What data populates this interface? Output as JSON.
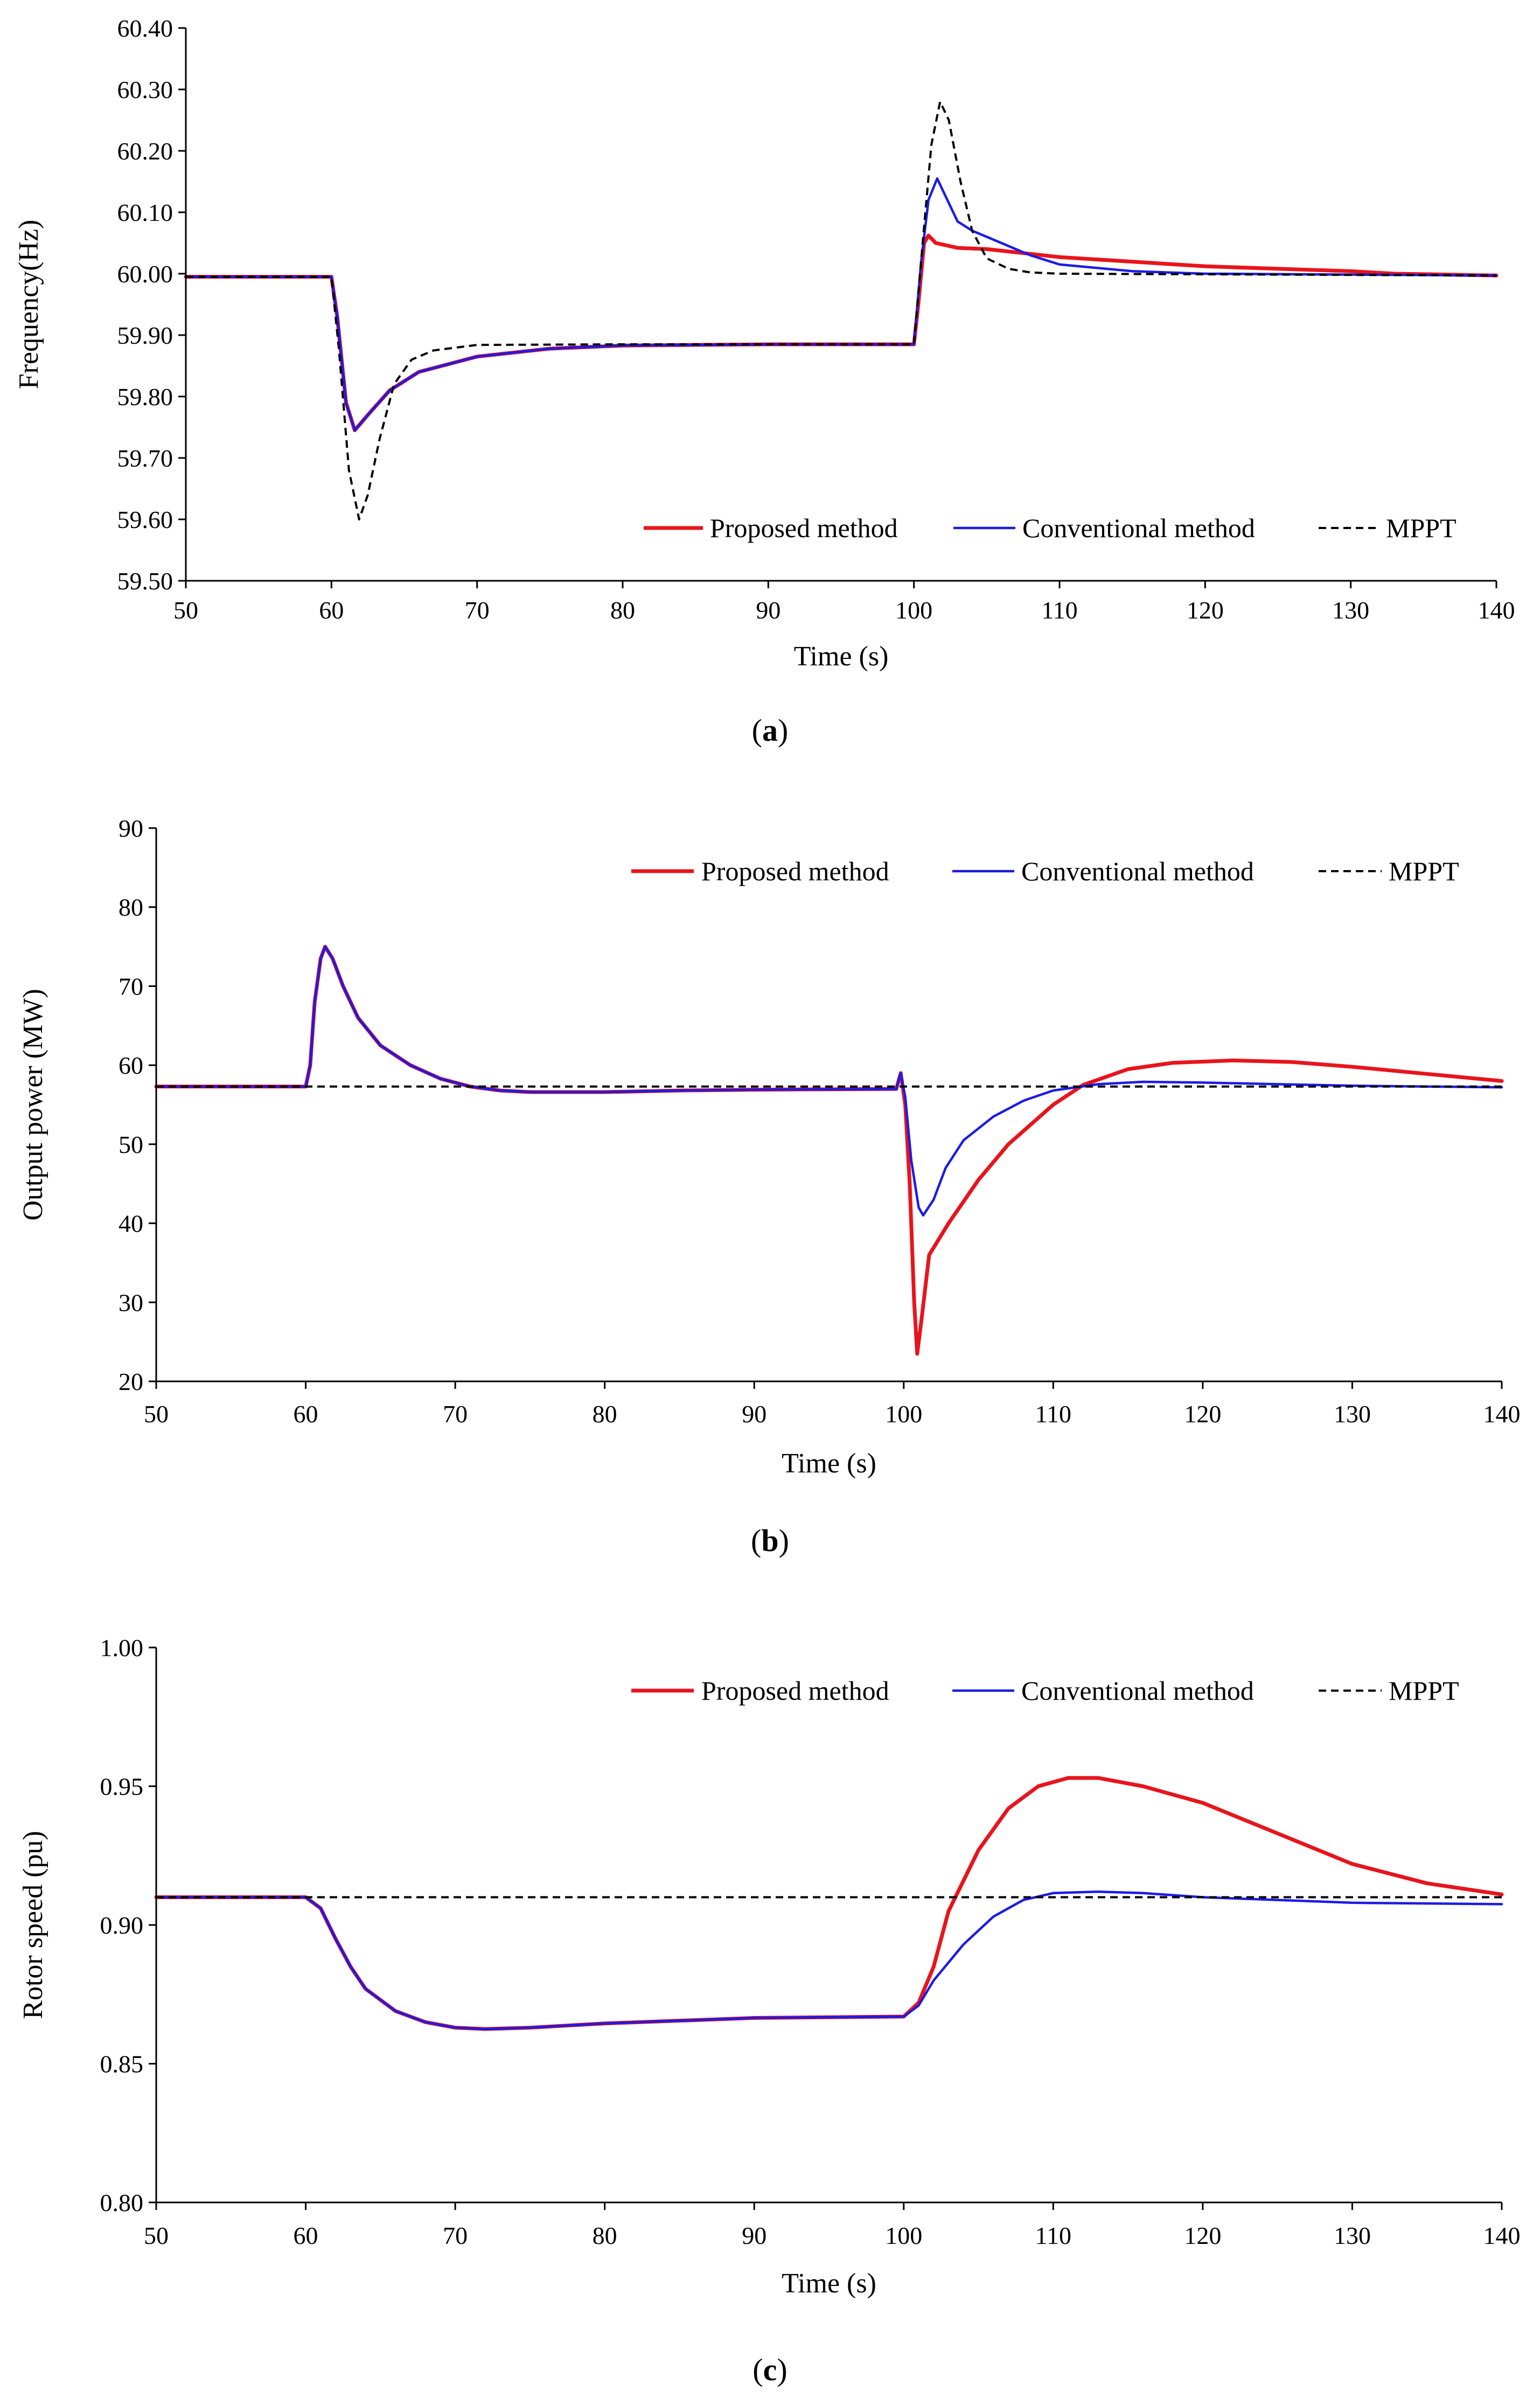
{
  "chart_data": [
    {
      "type": "line",
      "caption_letter": "a",
      "xlabel": "Time (s)",
      "ylabel": "Frequency(Hz)",
      "xlim": [
        50,
        140
      ],
      "ylim": [
        59.5,
        60.4
      ],
      "x_ticks": [
        "50",
        "60",
        "70",
        "80",
        "90",
        "100",
        "110",
        "120",
        "130",
        "140"
      ],
      "y_ticks": [
        "59.50",
        "59.60",
        "59.70",
        "59.80",
        "59.90",
        "60.00",
        "60.10",
        "60.20",
        "60.30",
        "60.40"
      ],
      "legend_position": "bottom-right",
      "grid": false,
      "series": [
        {
          "name": "Proposed method",
          "color": "#e8141c",
          "style": "solid",
          "points": [
            [
              50,
              59.995
            ],
            [
              60,
              59.995
            ],
            [
              60.4,
              59.93
            ],
            [
              61,
              59.79
            ],
            [
              61.6,
              59.745
            ],
            [
              62.5,
              59.77
            ],
            [
              64,
              59.81
            ],
            [
              66,
              59.84
            ],
            [
              70,
              59.865
            ],
            [
              75,
              59.878
            ],
            [
              80,
              59.883
            ],
            [
              90,
              59.885
            ],
            [
              100,
              59.885
            ],
            [
              100.3,
              59.95
            ],
            [
              100.7,
              60.05
            ],
            [
              101,
              60.062
            ],
            [
              101.5,
              60.05
            ],
            [
              103,
              60.042
            ],
            [
              105,
              60.04
            ],
            [
              110,
              60.027
            ],
            [
              120,
              60.012
            ],
            [
              130,
              60.004
            ],
            [
              133,
              60.0
            ],
            [
              140,
              59.997
            ]
          ]
        },
        {
          "name": "Conventional method",
          "color": "#1b1be6",
          "style": "solid",
          "points": [
            [
              50,
              59.995
            ],
            [
              60,
              59.995
            ],
            [
              60.4,
              59.93
            ],
            [
              61,
              59.79
            ],
            [
              61.6,
              59.745
            ],
            [
              62.5,
              59.77
            ],
            [
              64,
              59.81
            ],
            [
              66,
              59.84
            ],
            [
              70,
              59.865
            ],
            [
              75,
              59.878
            ],
            [
              80,
              59.883
            ],
            [
              90,
              59.885
            ],
            [
              100,
              59.885
            ],
            [
              100.5,
              60.02
            ],
            [
              101,
              60.12
            ],
            [
              101.6,
              60.155
            ],
            [
              102.3,
              60.12
            ],
            [
              103,
              60.085
            ],
            [
              104,
              60.07
            ],
            [
              106,
              60.05
            ],
            [
              108,
              60.03
            ],
            [
              110,
              60.015
            ],
            [
              115,
              60.004
            ],
            [
              120,
              60.0
            ],
            [
              140,
              59.997
            ]
          ]
        },
        {
          "name": "MPPT",
          "color": "#000000",
          "style": "dashed",
          "points": [
            [
              50,
              59.995
            ],
            [
              60,
              59.995
            ],
            [
              60.5,
              59.88
            ],
            [
              61.2,
              59.68
            ],
            [
              61.9,
              59.6
            ],
            [
              62.5,
              59.64
            ],
            [
              63.3,
              59.73
            ],
            [
              64.3,
              59.82
            ],
            [
              65.5,
              59.86
            ],
            [
              67,
              59.875
            ],
            [
              70,
              59.884
            ],
            [
              80,
              59.885
            ],
            [
              100,
              59.885
            ],
            [
              100.6,
              60.05
            ],
            [
              101.2,
              60.21
            ],
            [
              101.8,
              60.28
            ],
            [
              102.4,
              60.25
            ],
            [
              103.2,
              60.15
            ],
            [
              104,
              60.07
            ],
            [
              105,
              60.025
            ],
            [
              106.5,
              60.008
            ],
            [
              108,
              60.002
            ],
            [
              110,
              60.0
            ],
            [
              140,
              59.997
            ]
          ]
        }
      ]
    },
    {
      "type": "line",
      "caption_letter": "b",
      "xlabel": "Time (s)",
      "ylabel": "Output power (MW)",
      "xlim": [
        50,
        140
      ],
      "ylim": [
        20,
        90
      ],
      "x_ticks": [
        "50",
        "60",
        "70",
        "80",
        "90",
        "100",
        "110",
        "120",
        "130",
        "140"
      ],
      "y_ticks": [
        "20",
        "30",
        "40",
        "50",
        "60",
        "70",
        "80",
        "90"
      ],
      "legend_position": "top-right",
      "grid": false,
      "series": [
        {
          "name": "Proposed method",
          "color": "#e8141c",
          "style": "solid",
          "points": [
            [
              50,
              57.3
            ],
            [
              60,
              57.3
            ],
            [
              60.3,
              60
            ],
            [
              60.6,
              68
            ],
            [
              61,
              73.5
            ],
            [
              61.3,
              75
            ],
            [
              61.8,
              73.5
            ],
            [
              62.5,
              70
            ],
            [
              63.5,
              66
            ],
            [
              65,
              62.5
            ],
            [
              67,
              60
            ],
            [
              69,
              58.3
            ],
            [
              71,
              57.3
            ],
            [
              73,
              56.8
            ],
            [
              75,
              56.6
            ],
            [
              80,
              56.6
            ],
            [
              85,
              56.8
            ],
            [
              90,
              56.9
            ],
            [
              99.5,
              57.0
            ],
            [
              99.8,
              59
            ],
            [
              100.1,
              55
            ],
            [
              100.4,
              45
            ],
            [
              100.7,
              30
            ],
            [
              100.9,
              23.5
            ],
            [
              101.2,
              28
            ],
            [
              101.7,
              36
            ],
            [
              103,
              40
            ],
            [
              105,
              45.5
            ],
            [
              107,
              50
            ],
            [
              110,
              55
            ],
            [
              112,
              57.5
            ],
            [
              115,
              59.5
            ],
            [
              118,
              60.3
            ],
            [
              122,
              60.6
            ],
            [
              126,
              60.4
            ],
            [
              130,
              59.8
            ],
            [
              135,
              58.9
            ],
            [
              140,
              58
            ]
          ]
        },
        {
          "name": "Conventional method",
          "color": "#1b1be6",
          "style": "solid",
          "points": [
            [
              50,
              57.3
            ],
            [
              60,
              57.3
            ],
            [
              60.3,
              60
            ],
            [
              60.6,
              68
            ],
            [
              61,
              73.5
            ],
            [
              61.3,
              75
            ],
            [
              61.8,
              73.5
            ],
            [
              62.5,
              70
            ],
            [
              63.5,
              66
            ],
            [
              65,
              62.5
            ],
            [
              67,
              60
            ],
            [
              69,
              58.3
            ],
            [
              71,
              57.3
            ],
            [
              73,
              56.8
            ],
            [
              75,
              56.6
            ],
            [
              80,
              56.6
            ],
            [
              85,
              56.8
            ],
            [
              90,
              56.9
            ],
            [
              99.5,
              57.0
            ],
            [
              99.8,
              59
            ],
            [
              100.1,
              56
            ],
            [
              100.5,
              48
            ],
            [
              101,
              42
            ],
            [
              101.3,
              41
            ],
            [
              102,
              43
            ],
            [
              102.8,
              47
            ],
            [
              104,
              50.5
            ],
            [
              106,
              53.5
            ],
            [
              108,
              55.5
            ],
            [
              110,
              56.8
            ],
            [
              113,
              57.6
            ],
            [
              116,
              57.9
            ],
            [
              120,
              57.8
            ],
            [
              125,
              57.6
            ],
            [
              130,
              57.4
            ],
            [
              140,
              57.2
            ]
          ]
        },
        {
          "name": "MPPT",
          "color": "#000000",
          "style": "dashed",
          "points": [
            [
              50,
              57.3
            ],
            [
              140,
              57.3
            ]
          ]
        }
      ]
    },
    {
      "type": "line",
      "caption_letter": "c",
      "xlabel": "Time (s)",
      "ylabel": "Rotor speed (pu)",
      "xlim": [
        50,
        140
      ],
      "ylim": [
        0.8,
        1.0
      ],
      "x_ticks": [
        "50",
        "60",
        "70",
        "80",
        "90",
        "100",
        "110",
        "120",
        "130",
        "140"
      ],
      "y_ticks": [
        "0.80",
        "0.85",
        "0.90",
        "0.95",
        "1.00"
      ],
      "legend_position": "top-right",
      "grid": false,
      "series": [
        {
          "name": "Proposed method",
          "color": "#e8141c",
          "style": "solid",
          "points": [
            [
              50,
              0.91
            ],
            [
              60,
              0.91
            ],
            [
              61,
              0.906
            ],
            [
              62,
              0.895
            ],
            [
              63,
              0.885
            ],
            [
              64,
              0.877
            ],
            [
              66,
              0.869
            ],
            [
              68,
              0.865
            ],
            [
              70,
              0.863
            ],
            [
              72,
              0.8625
            ],
            [
              75,
              0.863
            ],
            [
              80,
              0.8645
            ],
            [
              90,
              0.8665
            ],
            [
              100,
              0.867
            ],
            [
              101,
              0.872
            ],
            [
              102,
              0.885
            ],
            [
              103,
              0.905
            ],
            [
              105,
              0.927
            ],
            [
              107,
              0.942
            ],
            [
              109,
              0.95
            ],
            [
              111,
              0.953
            ],
            [
              113,
              0.953
            ],
            [
              116,
              0.95
            ],
            [
              120,
              0.944
            ],
            [
              125,
              0.933
            ],
            [
              130,
              0.922
            ],
            [
              135,
              0.915
            ],
            [
              140,
              0.911
            ]
          ]
        },
        {
          "name": "Conventional method",
          "color": "#1b1be6",
          "style": "solid",
          "points": [
            [
              50,
              0.91
            ],
            [
              60,
              0.91
            ],
            [
              61,
              0.906
            ],
            [
              62,
              0.895
            ],
            [
              63,
              0.885
            ],
            [
              64,
              0.877
            ],
            [
              66,
              0.869
            ],
            [
              68,
              0.865
            ],
            [
              70,
              0.863
            ],
            [
              72,
              0.8625
            ],
            [
              75,
              0.863
            ],
            [
              80,
              0.8645
            ],
            [
              90,
              0.8665
            ],
            [
              100,
              0.867
            ],
            [
              101,
              0.871
            ],
            [
              102,
              0.88
            ],
            [
              104,
              0.893
            ],
            [
              106,
              0.903
            ],
            [
              108,
              0.909
            ],
            [
              110,
              0.9115
            ],
            [
              113,
              0.912
            ],
            [
              116,
              0.9115
            ],
            [
              120,
              0.91
            ],
            [
              125,
              0.909
            ],
            [
              130,
              0.908
            ],
            [
              140,
              0.9075
            ]
          ]
        },
        {
          "name": "MPPT",
          "color": "#000000",
          "style": "dashed",
          "points": [
            [
              50,
              0.91
            ],
            [
              140,
              0.91
            ]
          ]
        }
      ]
    }
  ]
}
